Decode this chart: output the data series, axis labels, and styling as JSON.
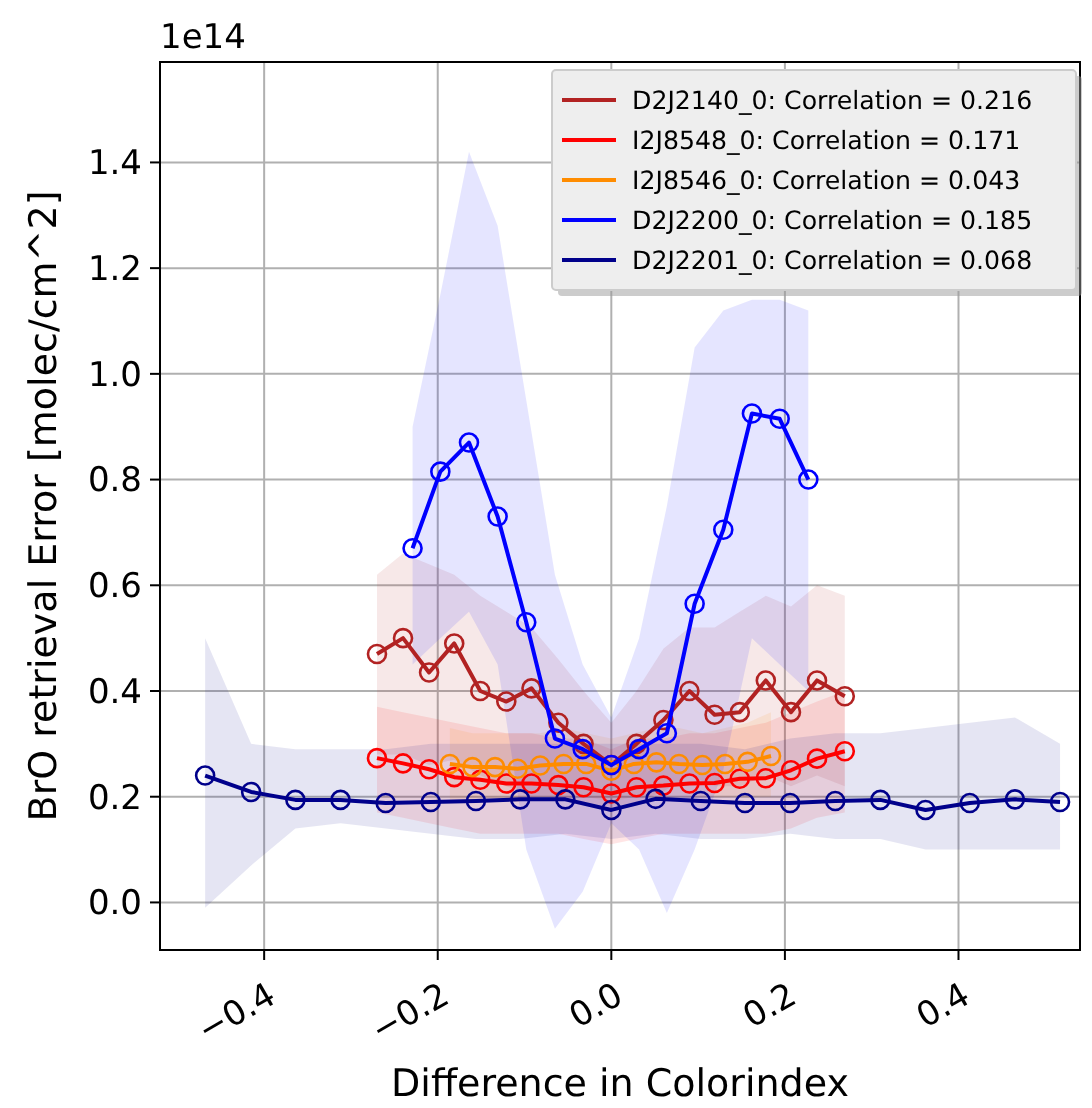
{
  "chart_data": {
    "type": "line",
    "xlabel": "Difference in Colorindex",
    "ylabel": "BrO retrieval Error [molec/cm^2]",
    "annotations": [
      "1e14"
    ],
    "xlim": [
      -0.52,
      0.54
    ],
    "ylim": [
      -0.09,
      1.59
    ],
    "xticks": [
      {
        "value": -0.4,
        "label": "−0.4"
      },
      {
        "value": -0.2,
        "label": "−0.2"
      },
      {
        "value": 0,
        "label": "0.0"
      },
      {
        "value": 0.2,
        "label": "0.2"
      },
      {
        "value": 0.4,
        "label": "0.4"
      }
    ],
    "yticks": [
      {
        "value": 0,
        "label": "0.0"
      },
      {
        "value": 0.2,
        "label": "0.2"
      },
      {
        "value": 0.4,
        "label": "0.4"
      },
      {
        "value": 0.6,
        "label": "0.6"
      },
      {
        "value": 0.8,
        "label": "0.8"
      },
      {
        "value": 1,
        "label": "1.0"
      },
      {
        "value": 1.2,
        "label": "1.2"
      },
      {
        "value": 1.4,
        "label": "1.4"
      }
    ],
    "grid": true,
    "legend": "top right",
    "marker": "circle",
    "line_style": "solid",
    "series": [
      {
        "name": "D2J2140_0: Correlation = 0.216",
        "color": "#b22222",
        "x": [
          -0.27,
          -0.24,
          -0.21,
          -0.181,
          -0.151,
          -0.121,
          -0.092,
          -0.061,
          -0.032,
          0,
          0.029,
          0.06,
          0.09,
          0.119,
          0.148,
          0.178,
          0.207,
          0.237,
          0.269
        ],
        "values": [
          0.47,
          0.5,
          0.435,
          0.49,
          0.4,
          0.38,
          0.405,
          0.34,
          0.3,
          0.26,
          0.3,
          0.345,
          0.4,
          0.355,
          0.36,
          0.42,
          0.36,
          0.42,
          0.39
        ],
        "upper": [
          0.62,
          0.66,
          0.64,
          0.62,
          0.58,
          0.55,
          0.52,
          0.46,
          0.4,
          0.34,
          0.4,
          0.48,
          0.52,
          0.52,
          0.55,
          0.58,
          0.56,
          0.6,
          0.58
        ],
        "lower": [
          0.28,
          0.28,
          0.26,
          0.27,
          0.24,
          0.22,
          0.2,
          0.2,
          0.19,
          0.18,
          0.19,
          0.21,
          0.24,
          0.22,
          0.22,
          0.24,
          0.22,
          0.24,
          0.22
        ]
      },
      {
        "name": "I2J8548_0: Correlation = 0.171",
        "color": "#ff0000",
        "x": [
          -0.27,
          -0.24,
          -0.21,
          -0.181,
          -0.151,
          -0.121,
          -0.092,
          -0.061,
          -0.032,
          0,
          0.029,
          0.06,
          0.09,
          0.119,
          0.148,
          0.178,
          0.207,
          0.237,
          0.269
        ],
        "values": [
          0.273,
          0.263,
          0.252,
          0.237,
          0.232,
          0.225,
          0.225,
          0.222,
          0.218,
          0.206,
          0.218,
          0.221,
          0.225,
          0.226,
          0.234,
          0.235,
          0.25,
          0.272,
          0.286
        ],
        "upper": [
          0.37,
          0.36,
          0.35,
          0.34,
          0.33,
          0.32,
          0.32,
          0.31,
          0.31,
          0.29,
          0.31,
          0.31,
          0.32,
          0.32,
          0.33,
          0.34,
          0.36,
          0.38,
          0.4
        ],
        "lower": [
          0.17,
          0.16,
          0.15,
          0.14,
          0.13,
          0.13,
          0.13,
          0.13,
          0.12,
          0.11,
          0.12,
          0.13,
          0.13,
          0.13,
          0.13,
          0.13,
          0.14,
          0.16,
          0.17
        ]
      },
      {
        "name": "I2J8546_0: Correlation = 0.043",
        "color": "#ff8c00",
        "x": [
          -0.186,
          -0.16,
          -0.134,
          -0.108,
          -0.082,
          -0.055,
          -0.029,
          0,
          0.026,
          0.052,
          0.078,
          0.105,
          0.131,
          0.157,
          0.184
        ],
        "values": [
          0.262,
          0.256,
          0.256,
          0.253,
          0.259,
          0.262,
          0.262,
          0.249,
          0.262,
          0.265,
          0.262,
          0.26,
          0.262,
          0.266,
          0.277
        ],
        "upper": [
          0.33,
          0.32,
          0.32,
          0.32,
          0.32,
          0.33,
          0.32,
          0.31,
          0.32,
          0.33,
          0.33,
          0.32,
          0.33,
          0.34,
          0.36
        ],
        "lower": [
          0.19,
          0.19,
          0.19,
          0.19,
          0.2,
          0.2,
          0.2,
          0.19,
          0.2,
          0.2,
          0.2,
          0.2,
          0.2,
          0.2,
          0.2
        ]
      },
      {
        "name": "D2J2200_0: Correlation = 0.185",
        "color": "#0000ff",
        "x": [
          -0.229,
          -0.197,
          -0.164,
          -0.131,
          -0.098,
          -0.065,
          -0.033,
          0,
          0.032,
          0.064,
          0.096,
          0.129,
          0.162,
          0.194,
          0.227
        ],
        "values": [
          0.67,
          0.815,
          0.87,
          0.73,
          0.53,
          0.31,
          0.29,
          0.26,
          0.29,
          0.32,
          0.565,
          0.705,
          0.925,
          0.915,
          0.8
        ],
        "upper": [
          0.9,
          1.15,
          1.42,
          1.28,
          0.95,
          0.62,
          0.45,
          0.35,
          0.5,
          0.75,
          1.05,
          1.12,
          1.14,
          1.14,
          1.12
        ],
        "lower": [
          0.45,
          0.5,
          0.55,
          0.45,
          0.1,
          -0.05,
          0.02,
          0.15,
          0.1,
          -0.02,
          0.1,
          0.25,
          0.5,
          0.45,
          0.4
        ]
      },
      {
        "name": "D2J2201_0: Correlation = 0.068",
        "color": "#00008b",
        "x": [
          -0.468,
          -0.415,
          -0.364,
          -0.312,
          -0.26,
          -0.208,
          -0.156,
          -0.105,
          -0.053,
          0,
          0.051,
          0.103,
          0.154,
          0.206,
          0.258,
          0.31,
          0.362,
          0.413,
          0.465,
          0.517
        ],
        "values": [
          0.24,
          0.209,
          0.194,
          0.194,
          0.188,
          0.19,
          0.192,
          0.195,
          0.195,
          0.175,
          0.196,
          0.192,
          0.188,
          0.188,
          0.192,
          0.194,
          0.175,
          0.188,
          0.195,
          0.19
        ],
        "upper": [
          0.5,
          0.3,
          0.29,
          0.29,
          0.29,
          0.3,
          0.3,
          0.3,
          0.3,
          0.3,
          0.3,
          0.3,
          0.29,
          0.31,
          0.32,
          0.32,
          0.33,
          0.34,
          0.35,
          0.3
        ],
        "lower": [
          -0.01,
          0.07,
          0.14,
          0.15,
          0.14,
          0.13,
          0.12,
          0.12,
          0.13,
          0.12,
          0.13,
          0.12,
          0.12,
          0.13,
          0.12,
          0.12,
          0.1,
          0.1,
          0.1,
          0.1
        ]
      }
    ]
  }
}
